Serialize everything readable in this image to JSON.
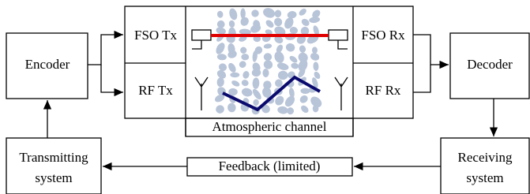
{
  "blocks": {
    "encoder": "Encoder",
    "fso_tx": "FSO Tx",
    "rf_tx": "RF Tx",
    "channel": "Atmospheric channel",
    "fso_rx": "FSO Rx",
    "rf_rx": "RF Rx",
    "decoder": "Decoder",
    "transmitting": [
      "Transmitting",
      "system"
    ],
    "receiving": [
      "Receiving",
      "system"
    ],
    "feedback": "Feedback (limited)"
  }
}
